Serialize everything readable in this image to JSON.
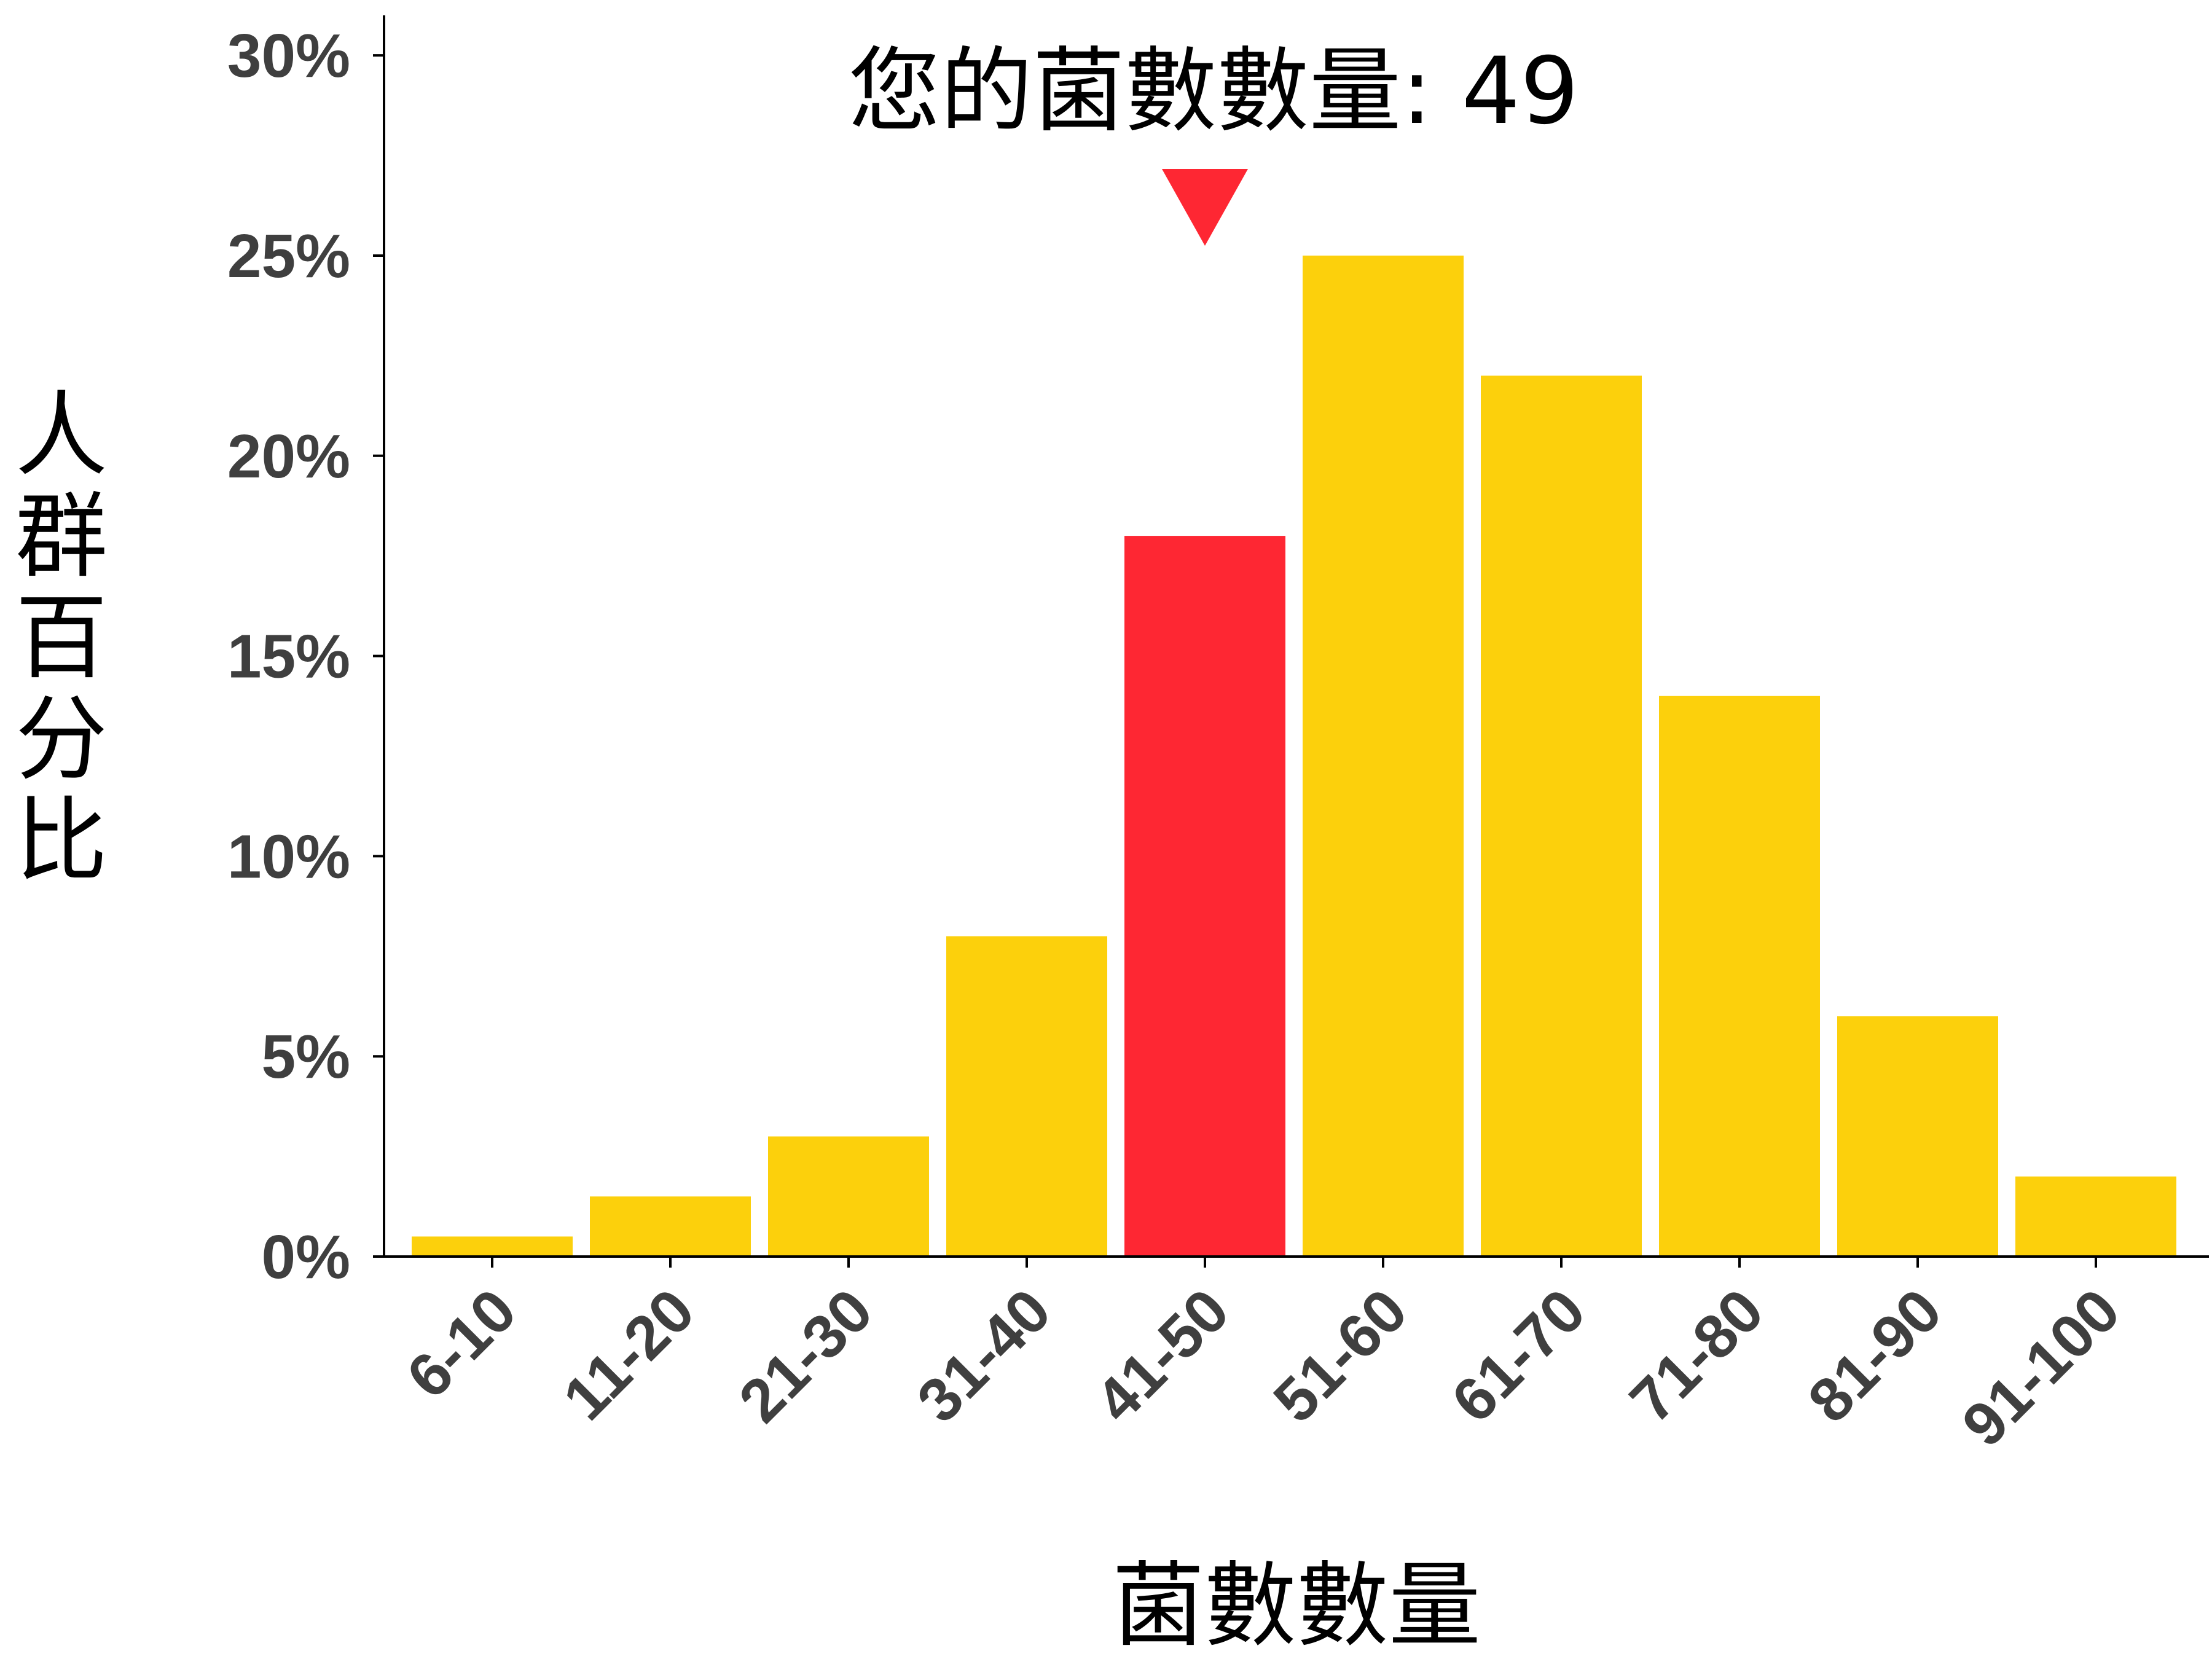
{
  "chart_data": {
    "type": "bar",
    "categories": [
      "6-10",
      "11-20",
      "21-30",
      "31-40",
      "41-50",
      "51-60",
      "61-70",
      "71-80",
      "81-90",
      "91-100"
    ],
    "values": [
      0.5,
      1.5,
      3,
      8,
      18,
      25,
      22,
      14,
      6,
      2
    ],
    "highlight_category": "41-50",
    "xlabel": "菌數數量",
    "ylabel": "人群百分比",
    "ylim": [
      0,
      31
    ],
    "yticks": [
      0,
      5,
      10,
      15,
      20,
      25,
      30
    ],
    "ytick_labels": [
      "0%",
      "5%",
      "10%",
      "15%",
      "20%",
      "25%",
      "30%"
    ],
    "annotation": {
      "text": "您的菌數數量: 49",
      "marker": "downward-triangle",
      "target_category": "41-50"
    },
    "grid": false,
    "legend": "none",
    "colors": {
      "bar": "#fcd00c",
      "highlight": "#fe2733",
      "marker": "#fe2733",
      "axis": "#000000",
      "tick_text": "#3f3f3f"
    }
  }
}
